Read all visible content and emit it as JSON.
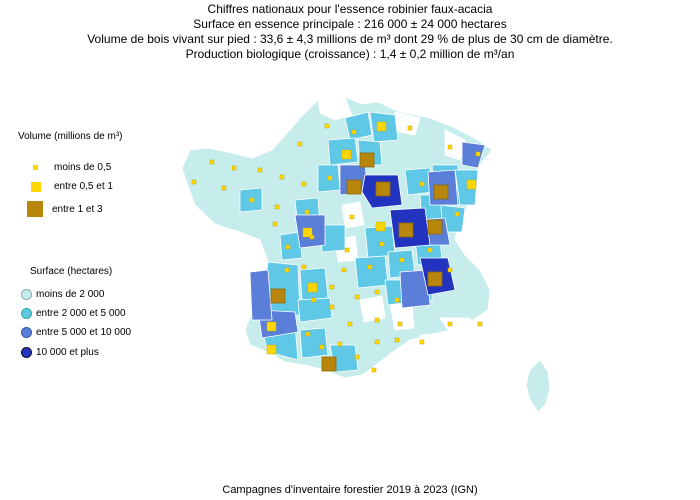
{
  "header": {
    "line1": "Chiffres nationaux pour l'essence robinier faux-acacia",
    "line2": "Surface en essence principale : 216 000 ± 24 000 hectares",
    "line3": "Volume de bois vivant sur pied : 33,6 ± 4,3 millions de m³ dont 29 % de plus de 30 cm de diamètre.",
    "line4": "Production biologique (croissance) : 1,4 ± 0,2 million de m³/an"
  },
  "legend_volume": {
    "title": "Volume (millions de m³)",
    "items": [
      {
        "label": "moins de 0,5",
        "color": "#FFD700"
      },
      {
        "label": "entre 0,5 et 1",
        "color": "#FFD700"
      },
      {
        "label": "entre 1 et 3",
        "color": "#B8860B"
      }
    ]
  },
  "legend_surface": {
    "title": "Surface (hectares)",
    "items": [
      {
        "label": "moins de 2 000",
        "color": "#C6ECEC"
      },
      {
        "label": "entre 2 000 et 5 000",
        "color": "#5FC8E6"
      },
      {
        "label": "entre 5 000 et 10 000",
        "color": "#5B7FD8"
      },
      {
        "label": "10 000 et plus",
        "color": "#2233C0"
      }
    ]
  },
  "footer": "Campagnes d'inventaire forestier 2019 à 2023 (IGN)"
}
